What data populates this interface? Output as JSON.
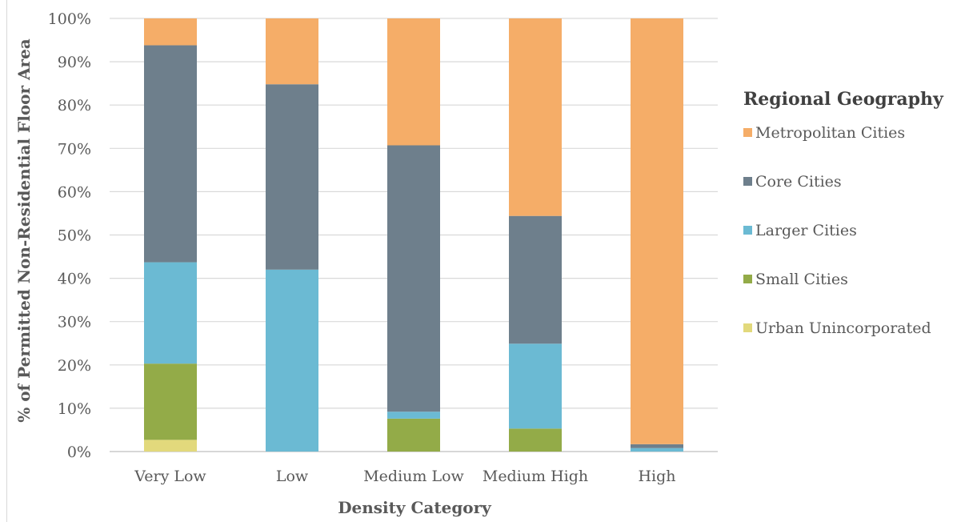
{
  "chart_data": {
    "type": "bar",
    "stacked": true,
    "normalized": true,
    "xlabel": "Density Category",
    "ylabel": "% of Permitted Non-Residential Floor Area",
    "categories": [
      "Very Low",
      "Low",
      "Medium Low",
      "Medium High",
      "High"
    ],
    "ylim": [
      0,
      100
    ],
    "yticks": [
      "0%",
      "10%",
      "20%",
      "30%",
      "40%",
      "50%",
      "60%",
      "70%",
      "80%",
      "90%",
      "100%"
    ],
    "grid": true,
    "legend": {
      "title": "Regional Geography",
      "position": "right"
    },
    "series": [
      {
        "name": "Urban Unincorporated",
        "color": "#e2d97c",
        "values": [
          2.7,
          0,
          0,
          0,
          0
        ]
      },
      {
        "name": "Small Cities",
        "color": "#93ab48",
        "values": [
          17.6,
          0,
          7.6,
          5.3,
          0
        ]
      },
      {
        "name": "Larger Cities",
        "color": "#6bbad3",
        "values": [
          23.4,
          42.0,
          1.6,
          19.6,
          0.8
        ]
      },
      {
        "name": "Core Cities",
        "color": "#6e7f8c",
        "values": [
          50.1,
          42.8,
          61.5,
          29.5,
          0.9
        ]
      },
      {
        "name": "Metropolitan Cities",
        "color": "#f5ad68",
        "values": [
          6.2,
          15.2,
          29.3,
          45.6,
          98.3
        ]
      }
    ]
  }
}
